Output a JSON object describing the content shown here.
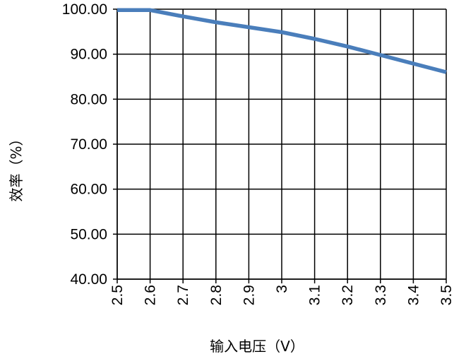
{
  "chart_data": {
    "type": "line",
    "xlabel": "输入电压（V）",
    "ylabel": "效率（%）",
    "x_ticks": [
      "2.5",
      "2.6",
      "2.7",
      "2.8",
      "2.9",
      "3",
      "3.1",
      "3.2",
      "3.3",
      "3.4",
      "3.5"
    ],
    "y_ticks": [
      "40.00",
      "50.00",
      "60.00",
      "70.00",
      "80.00",
      "90.00",
      "100.00"
    ],
    "xlim": [
      2.5,
      3.5
    ],
    "ylim": [
      40,
      100
    ],
    "grid": true,
    "series": [
      {
        "color": "#4a7ebb",
        "x": [
          2.5,
          2.6,
          2.7,
          2.8,
          2.9,
          3.0,
          3.1,
          3.2,
          3.3,
          3.4,
          3.5
        ],
        "y": [
          99.8,
          99.8,
          98.4,
          97.1,
          96.0,
          94.9,
          93.4,
          91.7,
          89.8,
          87.9,
          86.0
        ]
      }
    ]
  }
}
